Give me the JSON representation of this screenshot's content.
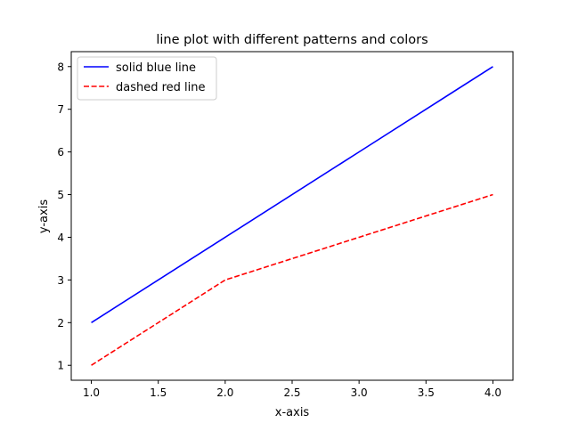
{
  "chart_data": {
    "type": "line",
    "title": "line plot with different patterns and colors",
    "xlabel": "x-axis",
    "ylabel": "y-axis",
    "xlim": [
      0.85,
      4.15
    ],
    "ylim": [
      0.65,
      8.35
    ],
    "xticks": [
      1.0,
      1.5,
      2.0,
      2.5,
      3.0,
      3.5,
      4.0
    ],
    "xtick_labels": [
      "1.0",
      "1.5",
      "2.0",
      "2.5",
      "3.0",
      "3.5",
      "4.0"
    ],
    "yticks": [
      1,
      2,
      3,
      4,
      5,
      6,
      7,
      8
    ],
    "ytick_labels": [
      "1",
      "2",
      "3",
      "4",
      "5",
      "6",
      "7",
      "8"
    ],
    "grid": false,
    "legend_position": "top-left",
    "series": [
      {
        "name": "solid blue line",
        "color": "#0000ff",
        "linestyle": "solid",
        "x": [
          1,
          2,
          3,
          4
        ],
        "y": [
          2,
          4,
          6,
          8
        ]
      },
      {
        "name": "dashed red line",
        "color": "#ff0000",
        "linestyle": "dashed",
        "x": [
          1,
          2,
          3,
          4
        ],
        "y": [
          1,
          3,
          4,
          5
        ]
      }
    ]
  }
}
